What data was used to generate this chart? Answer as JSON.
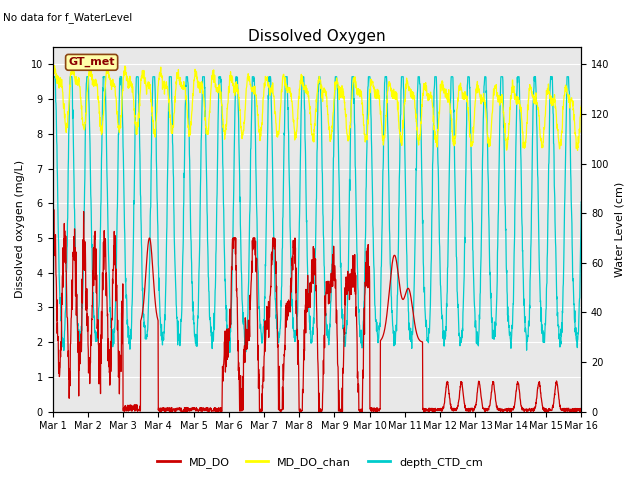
{
  "title": "Dissolved Oxygen",
  "top_label": "No data for f_WaterLevel",
  "annotation_text": "GT_met",
  "xlabel_ticks": [
    "Mar 1",
    "Mar 2",
    "Mar 3",
    "Mar 4",
    "Mar 5",
    "Mar 6",
    "Mar 7",
    "Mar 8",
    "Mar 9",
    "Mar 10",
    "Mar 11",
    "Mar 12",
    "Mar 13",
    "Mar 14",
    "Mar 15",
    "Mar 16"
  ],
  "ylabel_left": "Dissolved oxygen (mg/L)",
  "ylabel_right": "Water Level (cm)",
  "ylim_left": [
    0.0,
    10.5
  ],
  "ylim_right": [
    0,
    147
  ],
  "yticks_left": [
    0.0,
    1.0,
    2.0,
    3.0,
    4.0,
    5.0,
    6.0,
    7.0,
    8.0,
    9.0,
    10.0
  ],
  "yticks_right": [
    0,
    20,
    40,
    60,
    80,
    100,
    120,
    140
  ],
  "color_MD_DO": "#cc0000",
  "color_MD_DO_chan": "#ffff00",
  "color_depth_CTD": "#00cccc",
  "background_color": "#dcdcdc",
  "plot_bg_color": "#e8e8e8",
  "legend_labels": [
    "MD_DO",
    "MD_DO_chan",
    "depth_CTD_cm"
  ],
  "figsize": [
    6.4,
    4.8
  ],
  "dpi": 100
}
